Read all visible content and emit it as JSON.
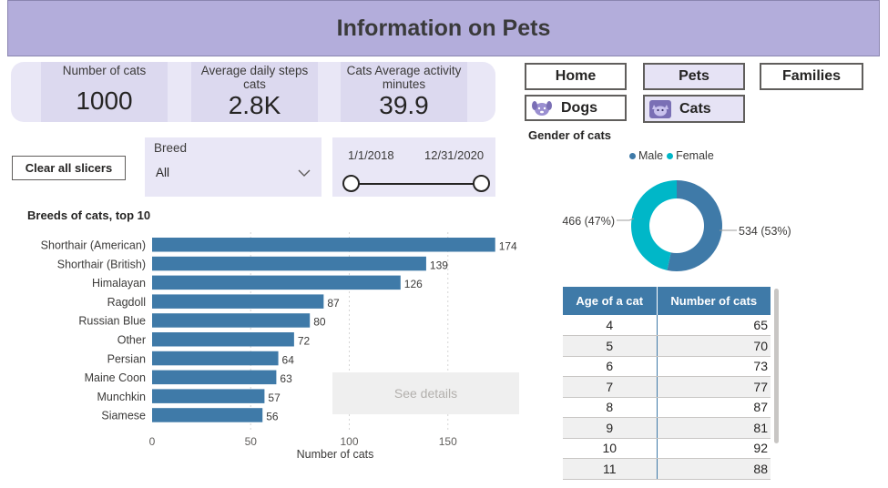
{
  "title": "Information on Pets",
  "kpis": [
    {
      "label": "Number of cats",
      "value": "1000"
    },
    {
      "label": "Average daily steps cats",
      "value": "2.8K"
    },
    {
      "label": "Cats Average activity minutes",
      "value": "39.9"
    }
  ],
  "nav": {
    "home": "Home",
    "pets": "Pets",
    "families": "Families",
    "dogs": "Dogs",
    "cats": "Cats"
  },
  "clear_slicers": "Clear all slicers",
  "breed_slicer": {
    "title": "Breed",
    "selected": "All"
  },
  "date_slicer": {
    "start": "1/1/2018",
    "end": "12/31/2020"
  },
  "see_details": "See details",
  "colors": {
    "bar": "#3f7aa8",
    "male": "#3f7aa8",
    "female": "#00b7c8",
    "header": "#b3addb"
  },
  "bar_chart": {
    "type": "bar",
    "title": "Breeds of cats, top 10",
    "xlabel": "Number of cats",
    "categories": [
      "Shorthair (American)",
      "Shorthair (British)",
      "Himalayan",
      "Ragdoll",
      "Russian Blue",
      "Other",
      "Persian",
      "Maine Coon",
      "Munchkin",
      "Siamese"
    ],
    "values": [
      174,
      139,
      126,
      87,
      80,
      72,
      64,
      63,
      57,
      56
    ],
    "ticks": [
      0,
      50,
      100,
      150
    ],
    "xlim": [
      0,
      174
    ]
  },
  "donut_chart": {
    "type": "pie",
    "title": "Gender of cats",
    "legend": [
      "Male",
      "Female"
    ],
    "values": [
      534,
      466
    ],
    "labels": [
      "534 (53%)",
      "466 (47%)"
    ]
  },
  "age_table": {
    "headers": [
      "Age of a cat",
      "Number of cats"
    ],
    "rows": [
      {
        "age": "4",
        "count": "65"
      },
      {
        "age": "5",
        "count": "70"
      },
      {
        "age": "6",
        "count": "73"
      },
      {
        "age": "7",
        "count": "77"
      },
      {
        "age": "8",
        "count": "87"
      },
      {
        "age": "9",
        "count": "81"
      },
      {
        "age": "10",
        "count": "92"
      },
      {
        "age": "11",
        "count": "88"
      }
    ]
  }
}
